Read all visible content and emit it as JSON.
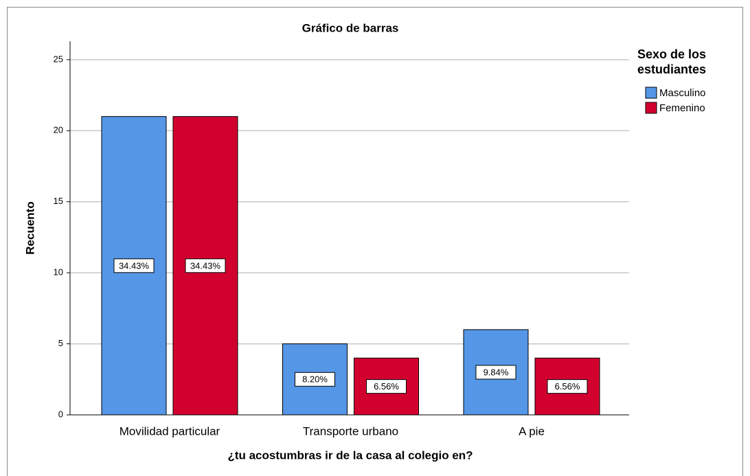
{
  "chart_data": {
    "type": "bar",
    "title": "Gráfico de barras",
    "x_label": "¿tu acostumbras ir de la casa al colegio en?",
    "y_label": "Recuento",
    "legend_title": "Sexo de los estudiantes",
    "categories": [
      "Movilidad particular",
      "Transporte urbano",
      "A pie"
    ],
    "series": [
      {
        "name": "Masculino",
        "color": "#5596e6",
        "values": [
          21,
          5,
          6
        ],
        "data_labels": [
          "34.43%",
          "8.20%",
          "9.84%"
        ]
      },
      {
        "name": "Femenino",
        "color": "#d2002e",
        "values": [
          21,
          4,
          4
        ],
        "data_labels": [
          "34.43%",
          "6.56%",
          "6.56%"
        ]
      }
    ],
    "ylim": [
      0,
      26.3
    ],
    "yticks": [
      0,
      5,
      10,
      15,
      20,
      25
    ],
    "grid": true,
    "legend": "right"
  }
}
